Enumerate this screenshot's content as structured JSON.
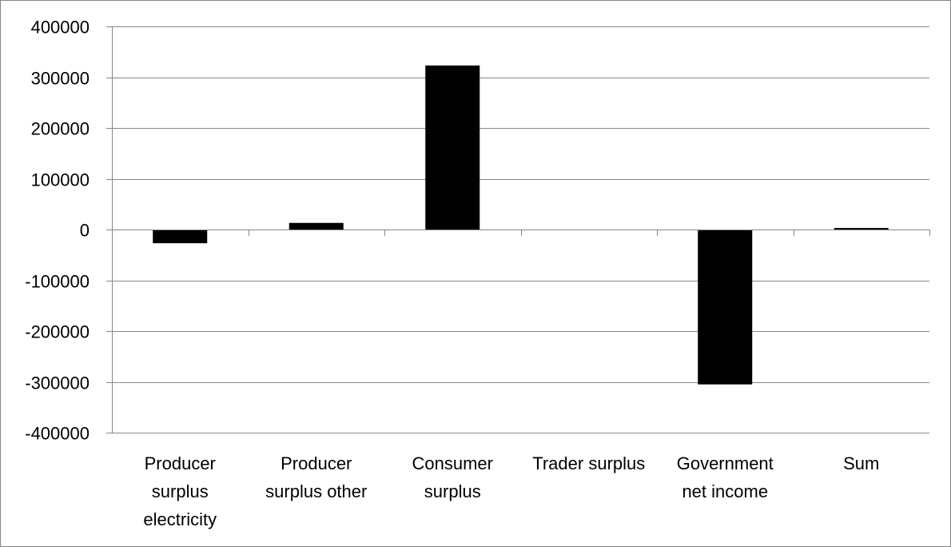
{
  "chart_data": {
    "type": "bar",
    "title": "",
    "xlabel": "",
    "ylabel": "",
    "categories": [
      [
        "Producer",
        "surplus",
        "electricity"
      ],
      [
        "Producer",
        "surplus other"
      ],
      [
        "Consumer",
        "surplus"
      ],
      [
        "Trader surplus"
      ],
      [
        "Government",
        "net income"
      ],
      [
        "Sum"
      ]
    ],
    "values": [
      -27000,
      13000,
      323000,
      0,
      -305000,
      3000
    ],
    "ylim": [
      -400000,
      400000
    ],
    "yticks": [
      400000,
      300000,
      200000,
      100000,
      0,
      -100000,
      -200000,
      -300000,
      -400000
    ],
    "ytick_labels": [
      "400000",
      "300000",
      "200000",
      "100000",
      "0",
      "-100000",
      "-200000",
      "-300000",
      "-400000"
    ],
    "grid": true,
    "legend": "none",
    "bar_color": "#000000",
    "grid_color": "#868686"
  }
}
